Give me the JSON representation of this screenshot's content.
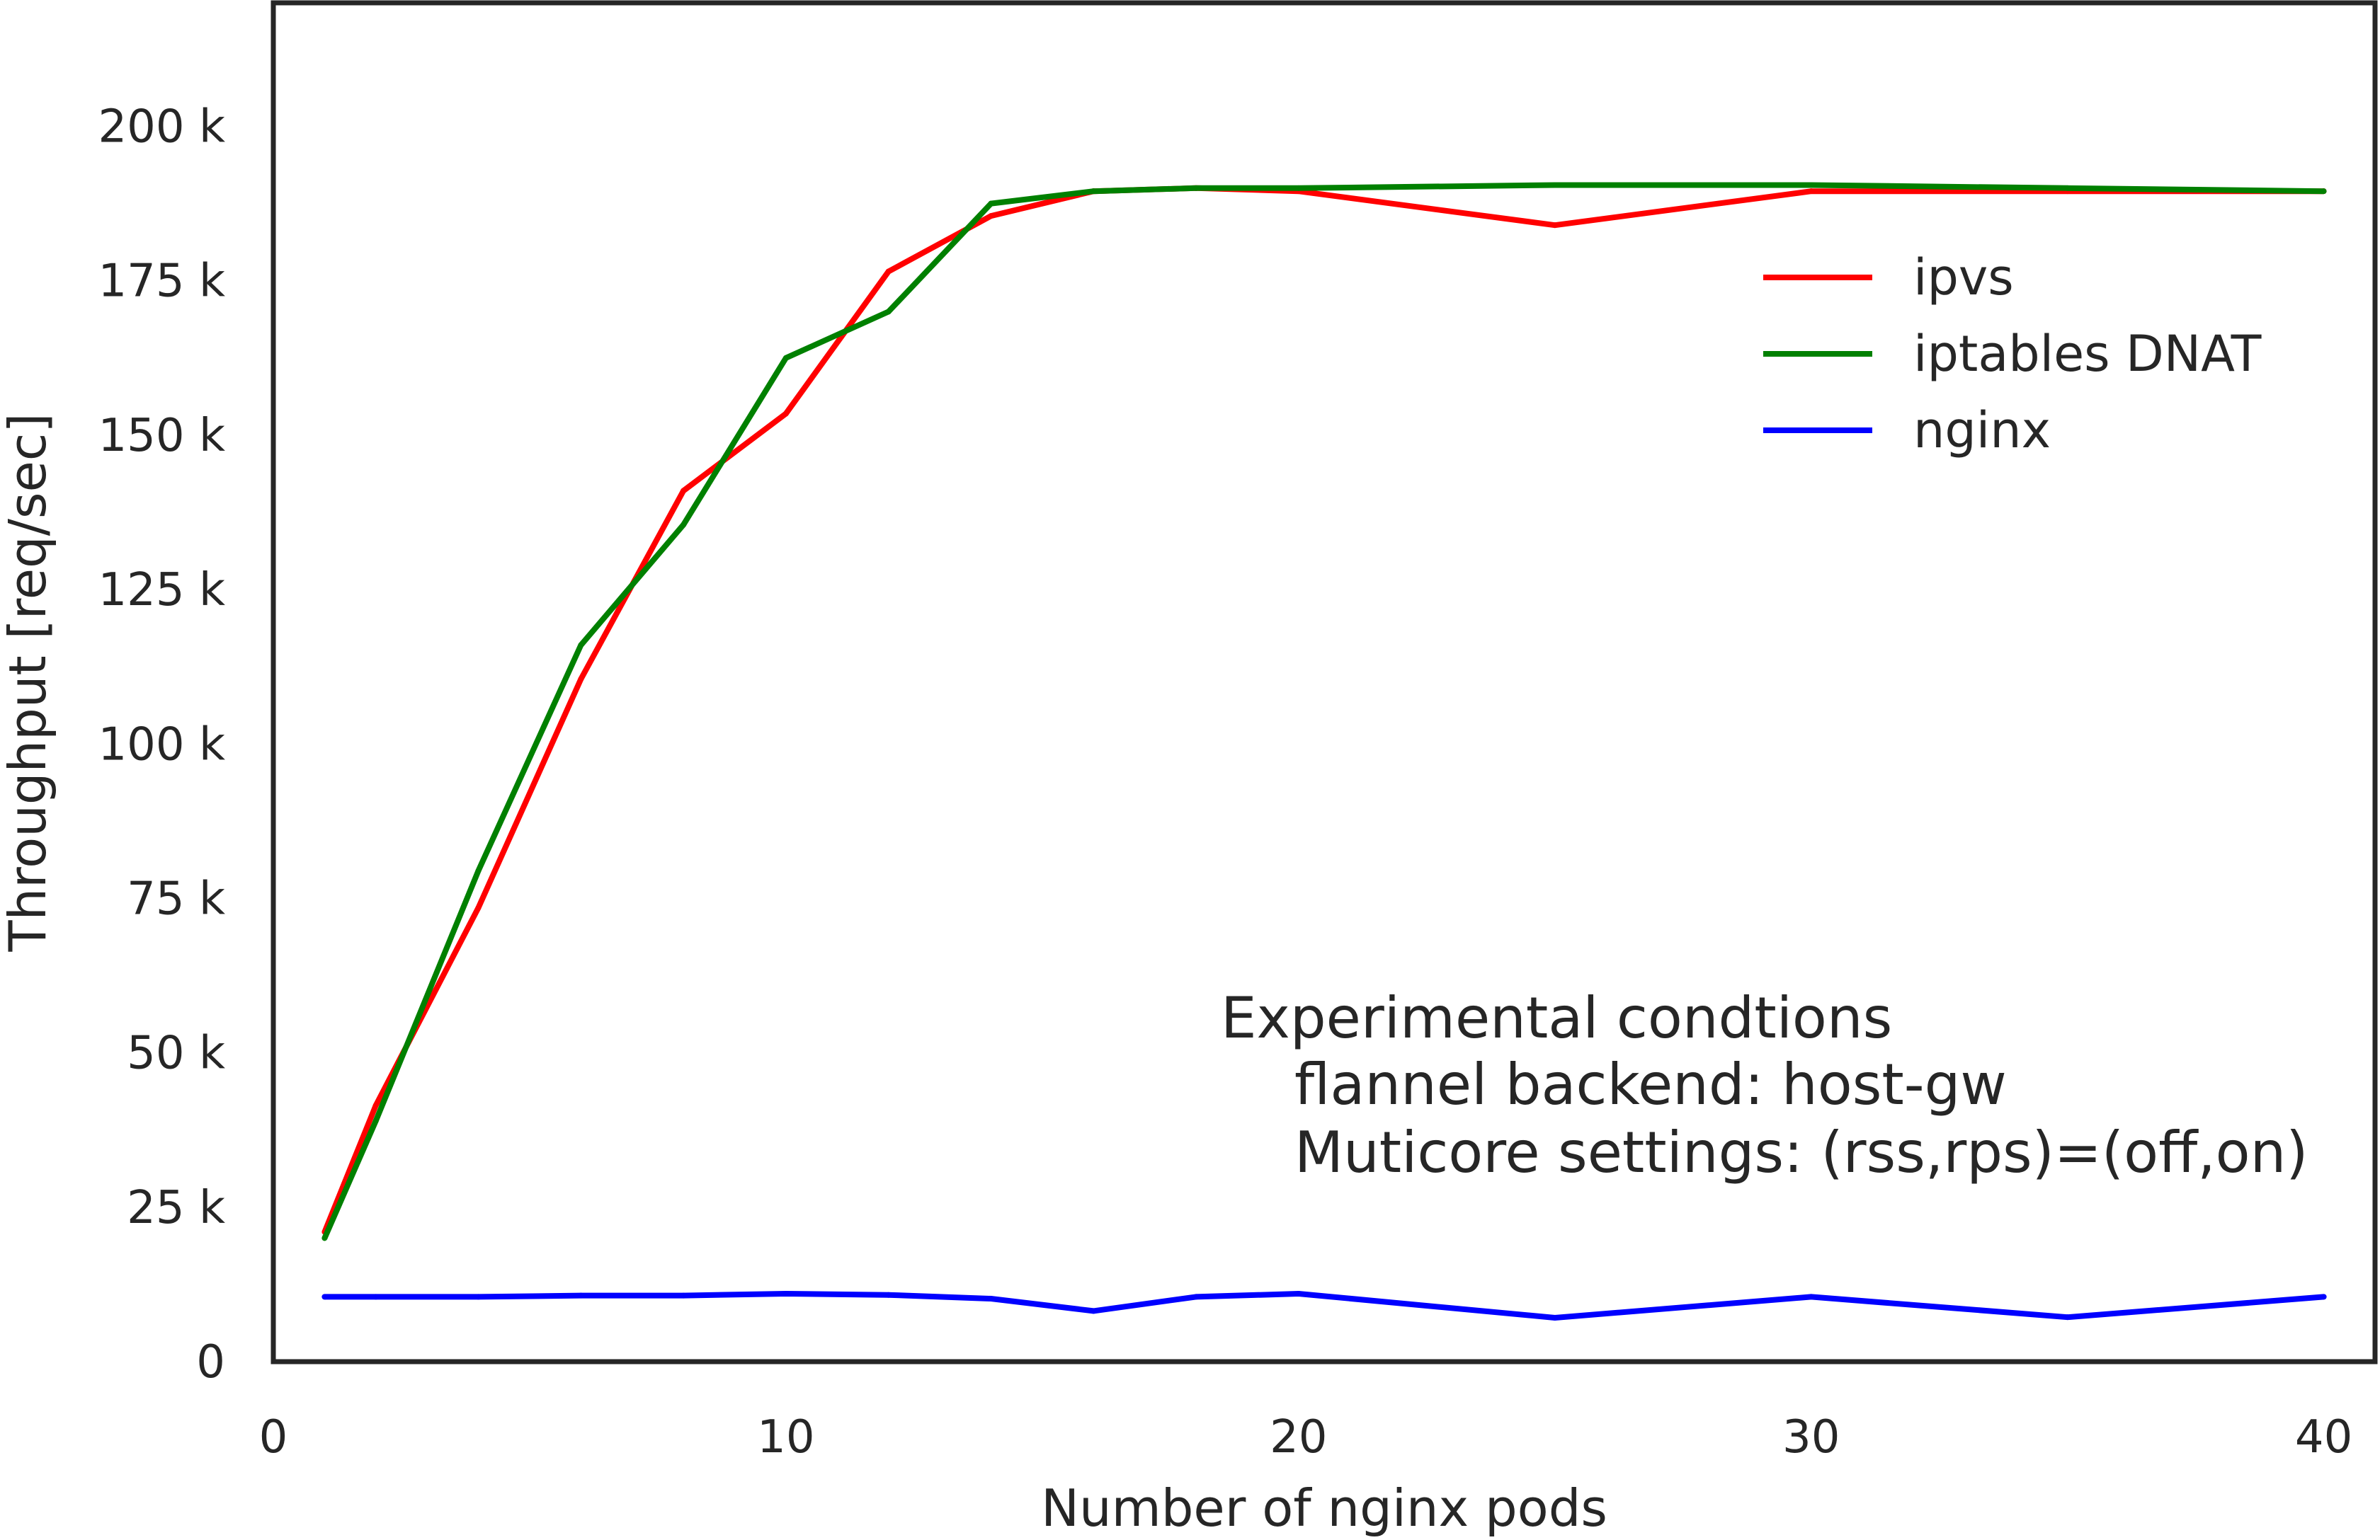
{
  "chart_data": {
    "type": "line",
    "xlabel": "Number of nginx pods",
    "ylabel": "Throughput [req/sec]",
    "xlim": [
      0,
      41
    ],
    "ylim": [
      0,
      220000
    ],
    "xticks": [
      0,
      10,
      20,
      30,
      40
    ],
    "xtick_labels": [
      "0",
      "10",
      "20",
      "30",
      "40"
    ],
    "yticks": [
      0,
      25000,
      50000,
      75000,
      100000,
      125000,
      150000,
      175000,
      200000
    ],
    "ytick_labels": [
      "0",
      "25 k",
      "50 k",
      "75 k",
      "100 k",
      "125 k",
      "150 k",
      "175 k",
      "200 k"
    ],
    "grid": false,
    "legend_position": "upper right",
    "series": [
      {
        "name": "ipvs",
        "color": "#ff0000",
        "x": [
          1,
          2,
          4,
          6,
          8,
          10,
          12,
          14,
          16,
          18,
          20,
          25,
          30,
          35,
          40
        ],
        "y": [
          21000,
          41500,
          73500,
          110500,
          141000,
          153500,
          176500,
          185500,
          189500,
          190000,
          189500,
          184000,
          189500,
          189500,
          189500
        ]
      },
      {
        "name": "iptables DNAT",
        "color": "#008000",
        "x": [
          1,
          2,
          4,
          6,
          8,
          10,
          12,
          14,
          16,
          18,
          20,
          25,
          30,
          35,
          40
        ],
        "y": [
          20000,
          39000,
          79500,
          116000,
          135500,
          162500,
          170000,
          187500,
          189500,
          190000,
          190000,
          190500,
          190500,
          190000,
          189500
        ]
      },
      {
        "name": "nginx",
        "color": "#0000ff",
        "x": [
          1,
          2,
          4,
          6,
          8,
          10,
          12,
          14,
          16,
          18,
          20,
          25,
          30,
          35,
          40
        ],
        "y": [
          10500,
          10500,
          10500,
          10700,
          10700,
          11000,
          10800,
          10200,
          8200,
          10500,
          11000,
          7100,
          10500,
          7200,
          10500
        ]
      }
    ],
    "annotation": {
      "title": "Experimental condtions",
      "lines": [
        "flannel backend: host-gw",
        "Muticore settings: (rss,rps)=(off,on)"
      ]
    }
  }
}
